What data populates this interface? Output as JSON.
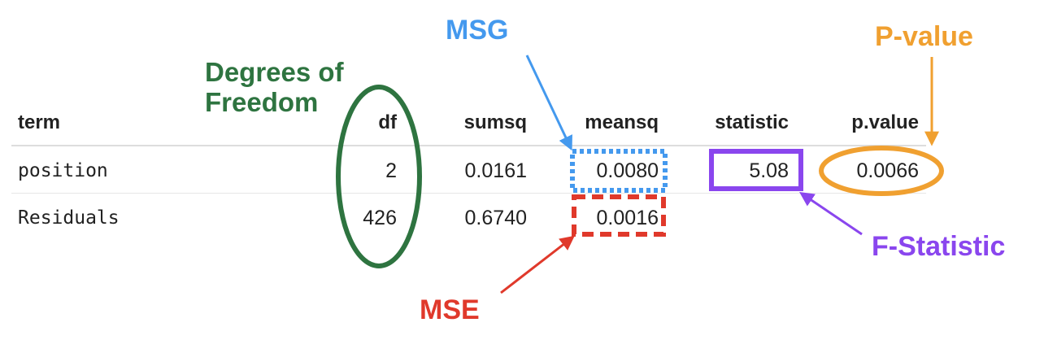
{
  "table": {
    "headers": [
      "term",
      "df",
      "sumsq",
      "meansq",
      "statistic",
      "p.value"
    ],
    "rows": [
      [
        "position",
        "2",
        "0.0161",
        "0.0080",
        "5.08",
        "0.0066"
      ],
      [
        "Residuals",
        "426",
        "0.6740",
        "0.0016",
        "",
        ""
      ]
    ]
  },
  "annotations": {
    "degrees_of_freedom": {
      "line1": "Degrees of",
      "line2": "Freedom",
      "color": "#2e7440"
    },
    "msg": {
      "label": "MSG",
      "color": "#4499ee"
    },
    "mse": {
      "label": "MSE",
      "color": "#e0392b"
    },
    "p_value": {
      "label": "P-value",
      "color": "#f0a030"
    },
    "f_statistic": {
      "label": "F-Statistic",
      "color": "#8a46ee"
    }
  },
  "colors": {
    "text": "#222222",
    "rule": "#dddddd"
  }
}
